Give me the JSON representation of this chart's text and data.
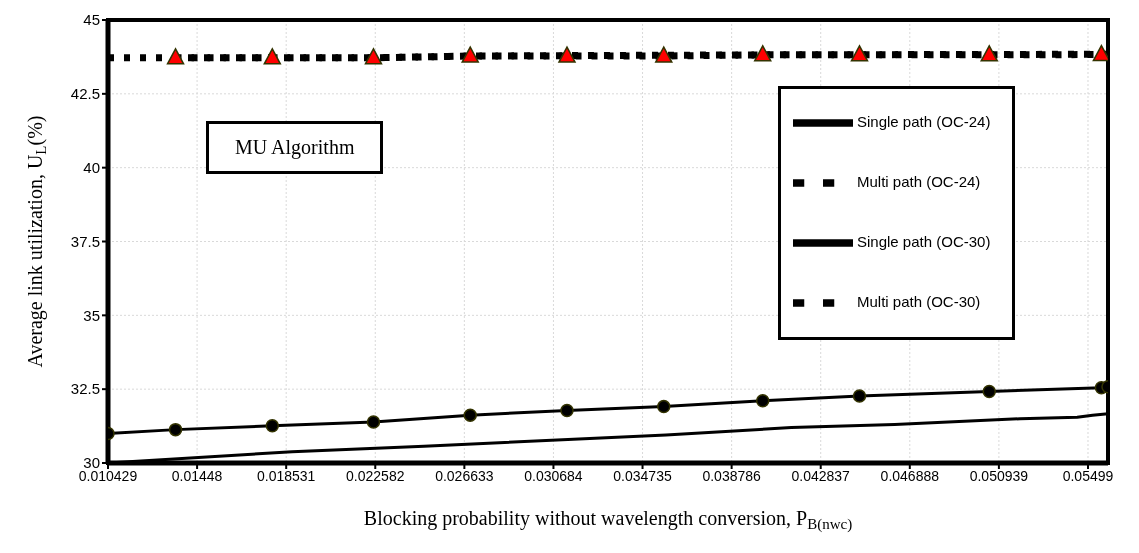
{
  "chart_data": {
    "type": "line",
    "xlabel": "Blocking probability without wavelength conversion, P$_{B(nwc)}$",
    "ylabel": "Average link utilization, U$_{L}$(%)",
    "annotations": [
      "MU Algorithm"
    ],
    "xlim": [
      0.010429,
      0.0559
    ],
    "xticks": [
      0.010429,
      0.01448,
      0.018531,
      0.022582,
      0.026633,
      0.030684,
      0.034735,
      0.038786,
      0.042837,
      0.046888,
      0.050939,
      0.05499
    ],
    "ylim": [
      30,
      45
    ],
    "yticks": [
      30,
      32.5,
      35,
      37.5,
      40,
      42.5,
      45
    ],
    "grid": true,
    "legend": "top right",
    "series": [
      {
        "name": "Single path (OC-24)",
        "color": "#000000",
        "line_style": "solid",
        "marker": "none",
        "x": [
          0.010429,
          0.0188,
          0.0248,
          0.0358,
          0.0415,
          0.0462,
          0.0519,
          0.0545,
          0.0552,
          0.0559
        ],
        "values": [
          30.0,
          30.38,
          30.57,
          30.95,
          31.2,
          31.3,
          31.5,
          31.55,
          31.62,
          31.67
        ]
      },
      {
        "name": "Multi path (OC-24)",
        "color": "#000000",
        "line_style": "dotted",
        "marker": "none",
        "x": [
          0.010429,
          0.0225,
          0.0269,
          0.0402,
          0.0559
        ],
        "values": [
          43.72,
          43.72,
          43.78,
          43.82,
          43.84
        ]
      },
      {
        "name": "Single path (OC-30)",
        "color": "#000000",
        "line_style": "solid",
        "marker": "circle",
        "x": [
          0.010429,
          0.0135,
          0.0179,
          0.0225,
          0.0269,
          0.0313,
          0.0357,
          0.0402,
          0.0446,
          0.0505,
          0.0556,
          0.0559
        ],
        "values": [
          31.0,
          31.13,
          31.26,
          31.39,
          31.62,
          31.78,
          31.91,
          32.11,
          32.27,
          32.42,
          32.55,
          32.58
        ]
      },
      {
        "name": "Multi path (OC-30)",
        "color": "#ff0000",
        "line_style": "dotted",
        "marker": "triangle",
        "x": [
          0.0135,
          0.0179,
          0.0225,
          0.0269,
          0.0313,
          0.0357,
          0.0402,
          0.0446,
          0.0505,
          0.0556
        ],
        "values": [
          43.72,
          43.72,
          43.72,
          43.78,
          43.78,
          43.78,
          43.82,
          43.82,
          43.82,
          43.83
        ]
      }
    ]
  }
}
